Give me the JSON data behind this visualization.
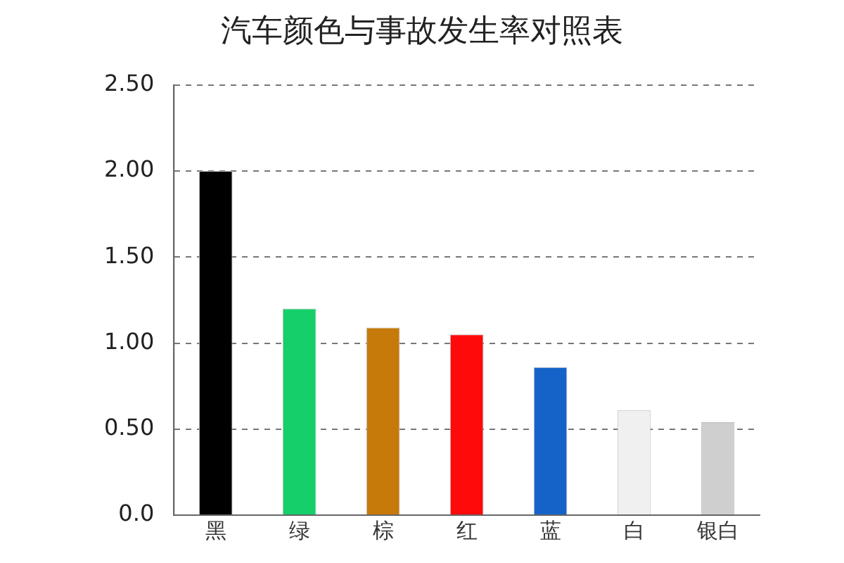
{
  "chart_data": {
    "type": "bar",
    "title": "汽车颜色与事故发生率对照表",
    "categories": [
      "黑",
      "绿",
      "棕",
      "红",
      "蓝",
      "白",
      "银白"
    ],
    "values": [
      2.0,
      1.2,
      1.09,
      1.05,
      0.86,
      0.61,
      0.54
    ],
    "colors": [
      "#000000",
      "#14cf6a",
      "#c67a0a",
      "#ff0a0a",
      "#1563c8",
      "#f0f0f0",
      "#cfcfcf"
    ],
    "ylim": [
      0,
      2.5
    ],
    "yticks": [
      {
        "value": 0,
        "label": "0.0"
      },
      {
        "value": 0.5,
        "label": "0.50"
      },
      {
        "value": 1,
        "label": "1.00"
      },
      {
        "value": 1.5,
        "label": "1.50"
      },
      {
        "value": 2,
        "label": "2.00"
      },
      {
        "value": 2.5,
        "label": "2.50"
      }
    ],
    "grid": "y"
  }
}
